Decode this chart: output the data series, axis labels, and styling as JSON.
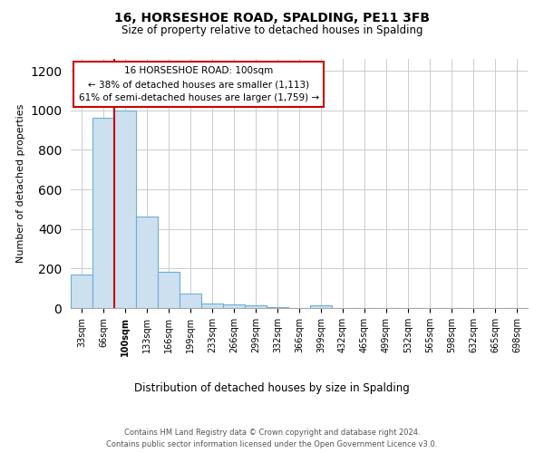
{
  "title": "16, HORSESHOE ROAD, SPALDING, PE11 3FB",
  "subtitle": "Size of property relative to detached houses in Spalding",
  "xlabel": "Distribution of detached houses by size in Spalding",
  "ylabel": "Number of detached properties",
  "categories": [
    "33sqm",
    "66sqm",
    "100sqm",
    "133sqm",
    "166sqm",
    "199sqm",
    "233sqm",
    "266sqm",
    "299sqm",
    "332sqm",
    "366sqm",
    "399sqm",
    "432sqm",
    "465sqm",
    "499sqm",
    "532sqm",
    "565sqm",
    "598sqm",
    "632sqm",
    "665sqm",
    "698sqm"
  ],
  "values": [
    170,
    960,
    1000,
    465,
    185,
    75,
    25,
    20,
    15,
    5,
    0,
    12,
    0,
    0,
    0,
    0,
    0,
    0,
    0,
    0,
    0
  ],
  "bar_color": "#cce0f0",
  "bar_edge_color": "#6baed6",
  "highlight_index": 2,
  "highlight_line_color": "#cc0000",
  "ylim": [
    0,
    1260
  ],
  "yticks": [
    0,
    200,
    400,
    600,
    800,
    1000,
    1200
  ],
  "annotation_line1": "16 HORSESHOE ROAD: 100sqm",
  "annotation_line2": "← 38% of detached houses are smaller (1,113)",
  "annotation_line3": "61% of semi-detached houses are larger (1,759) →",
  "annotation_box_color": "#ffffff",
  "annotation_box_edge": "#cc0000",
  "footer1": "Contains HM Land Registry data © Crown copyright and database right 2024.",
  "footer2": "Contains public sector information licensed under the Open Government Licence v3.0.",
  "bg_color": "#ffffff",
  "grid_color": "#cccccc"
}
